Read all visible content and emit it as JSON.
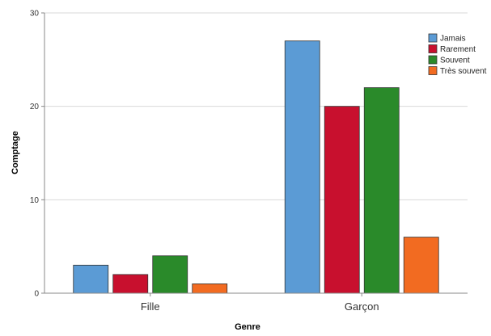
{
  "chart_data": {
    "type": "bar",
    "categories": [
      "Fille",
      "Garçon"
    ],
    "series": [
      {
        "name": "Jamais",
        "values": [
          3,
          27
        ],
        "color": "#5b9bd5"
      },
      {
        "name": "Rarement",
        "values": [
          2,
          20
        ],
        "color": "#c8102e"
      },
      {
        "name": "Souvent",
        "values": [
          4,
          22
        ],
        "color": "#2a8a2a"
      },
      {
        "name": "Très souvent",
        "values": [
          1,
          6
        ],
        "color": "#f26b21"
      }
    ],
    "xlabel": "Genre",
    "ylabel": "Comptage",
    "ylim": [
      0,
      30
    ],
    "yticks": [
      0,
      10,
      20,
      30
    ],
    "grid": true,
    "legend_position": "top-right"
  }
}
